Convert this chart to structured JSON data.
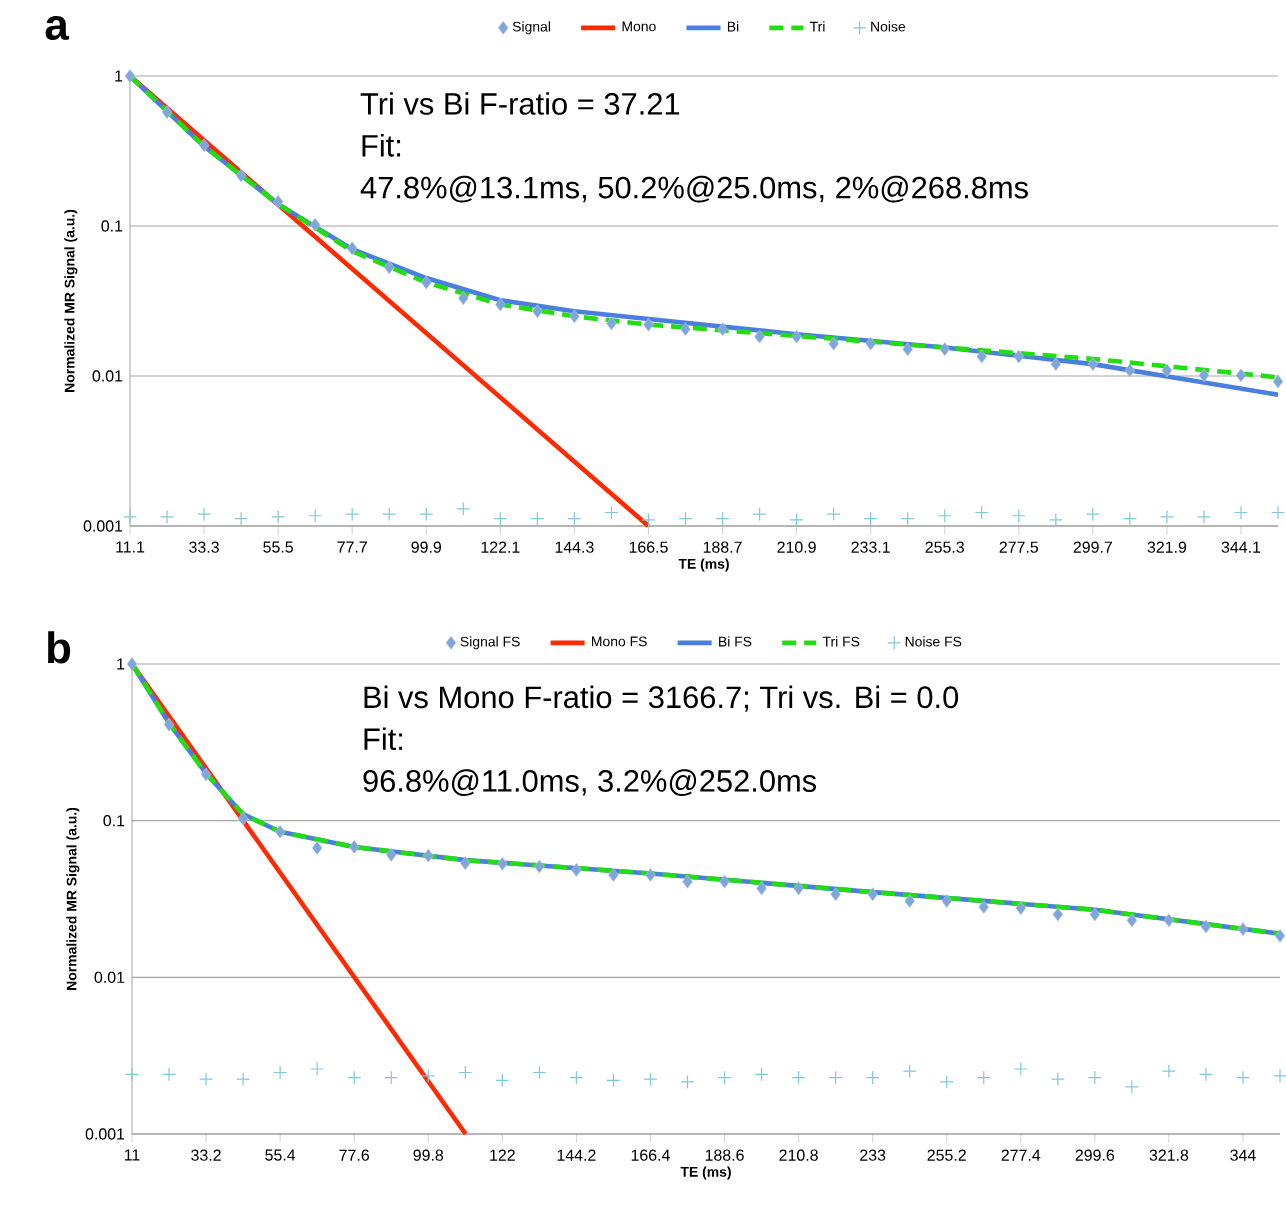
{
  "chart_data": [
    {
      "type": "line",
      "title": "a",
      "xlabel": "TE (ms)",
      "ylabel": "Normalized MR Signal (a.u.)",
      "annotations": [
        "Tri vs Bi F-ratio = 37.21",
        "Fit:",
        "47.8%@13.1ms, 50.2%@25.0ms, 2%@268.8ms"
      ],
      "xlim": [
        11.1,
        355.2
      ],
      "ylim": [
        0.001,
        1
      ],
      "xticks": [
        11.1,
        33.3,
        55.5,
        77.7,
        99.9,
        122.1,
        144.3,
        166.5,
        188.7,
        210.9,
        233.1,
        255.3,
        277.5,
        299.7,
        321.9,
        344.1
      ],
      "yticks": [
        0.001,
        0.01,
        0.1,
        1
      ],
      "log": "y",
      "grid": "y",
      "legend": "top",
      "series": [
        {
          "name": "Signal",
          "type": "scatter",
          "marker": "diamond",
          "color": "#7da7d9",
          "x": [
            11.1,
            22.2,
            33.3,
            44.4,
            55.5,
            66.6,
            77.7,
            88.8,
            99.9,
            111.0,
            122.1,
            133.2,
            144.3,
            155.4,
            166.5,
            177.6,
            188.7,
            199.8,
            210.9,
            222.0,
            233.1,
            244.2,
            255.3,
            266.4,
            277.5,
            288.6,
            299.7,
            310.8,
            321.9,
            333.0,
            344.1,
            355.2
          ],
          "values": [
            1,
            0.575,
            0.345,
            0.217,
            0.145,
            0.102,
            0.071,
            0.053,
            0.042,
            0.033,
            0.03,
            0.027,
            0.025,
            0.0224,
            0.022,
            0.0205,
            0.0205,
            0.0183,
            0.0183,
            0.0164,
            0.0164,
            0.0151,
            0.0151,
            0.0135,
            0.0135,
            0.012,
            0.012,
            0.0109,
            0.0109,
            0.0101,
            0.0101,
            0.0092
          ]
        },
        {
          "name": "Mono",
          "color": "#ff2a00",
          "line_style": "solid",
          "x": [
            11.1,
            166.5
          ],
          "values": [
            1,
            0.001
          ]
        },
        {
          "name": "Bi",
          "color": "#4a7fe0",
          "line_style": "solid",
          "x": [
            11.1,
            33.3,
            55.5,
            77.7,
            99.9,
            122.1,
            144.3,
            166.5,
            210.9,
            255.3,
            299.7,
            355.2
          ],
          "values": [
            1,
            0.34,
            0.14,
            0.07,
            0.045,
            0.032,
            0.027,
            0.024,
            0.019,
            0.0155,
            0.012,
            0.0075
          ]
        },
        {
          "name": "Tri",
          "color": "#22dd11",
          "line_style": "dashed",
          "x": [
            11.1,
            33.3,
            55.5,
            77.7,
            99.9,
            122.1,
            144.3,
            166.5,
            210.9,
            255.3,
            299.7,
            355.2
          ],
          "values": [
            1,
            0.34,
            0.14,
            0.068,
            0.042,
            0.03,
            0.025,
            0.022,
            0.0185,
            0.0155,
            0.013,
            0.0098
          ]
        },
        {
          "name": "Noise",
          "type": "scatter",
          "marker": "cross",
          "color": "#7ec8dc",
          "x": [
            11.1,
            22.2,
            33.3,
            44.4,
            55.5,
            66.6,
            77.7,
            88.8,
            99.9,
            111.0,
            122.1,
            133.2,
            144.3,
            155.4,
            166.5,
            177.6,
            188.7,
            199.8,
            210.9,
            222.0,
            233.1,
            244.2,
            255.3,
            266.4,
            277.5,
            288.6,
            299.7,
            310.8,
            321.9,
            333.0,
            344.1,
            355.2
          ],
          "values": [
            0.00115,
            0.00115,
            0.0012,
            0.00112,
            0.00115,
            0.00117,
            0.0012,
            0.0012,
            0.0012,
            0.0013,
            0.00112,
            0.00112,
            0.00112,
            0.00123,
            0.0011,
            0.00112,
            0.00112,
            0.0012,
            0.0011,
            0.0012,
            0.00112,
            0.00112,
            0.00117,
            0.00123,
            0.00117,
            0.0011,
            0.0012,
            0.00112,
            0.00115,
            0.00115,
            0.00123,
            0.00123
          ]
        }
      ]
    },
    {
      "type": "line",
      "title": "b",
      "xlabel": "TE (ms)",
      "ylabel": "Normalized MR Signal (a.u.)",
      "annotations": [
        "Bi vs Mono F-ratio = 3166.7; Tri vs. Bi = 0.0",
        "Fit:",
        "96.8%@11.0ms, 3.2%@252.0ms"
      ],
      "xlim": [
        11,
        355.1
      ],
      "ylim": [
        0.001,
        1
      ],
      "xticks": [
        11,
        33.2,
        55.4,
        77.6,
        99.8,
        122,
        144.2,
        166.4,
        188.6,
        210.8,
        233,
        255.2,
        277.4,
        299.6,
        321.8,
        344
      ],
      "yticks": [
        0.001,
        0.01,
        0.1,
        1
      ],
      "log": "y",
      "grid": "y",
      "legend": "top",
      "series": [
        {
          "name": "Signal FS",
          "type": "scatter",
          "marker": "diamond",
          "color": "#7da7d9",
          "x": [
            11,
            22.1,
            33.2,
            44.3,
            55.4,
            66.5,
            77.6,
            88.7,
            99.8,
            110.9,
            122,
            133.1,
            144.2,
            155.3,
            166.4,
            177.5,
            188.6,
            199.7,
            210.8,
            221.9,
            233,
            244.1,
            255.2,
            266.3,
            277.4,
            288.5,
            299.6,
            310.7,
            321.8,
            332.9,
            344,
            355.1
          ],
          "values": [
            1,
            0.41,
            0.197,
            0.103,
            0.085,
            0.067,
            0.068,
            0.0605,
            0.0598,
            0.0535,
            0.053,
            0.051,
            0.0485,
            0.045,
            0.045,
            0.0408,
            0.0408,
            0.037,
            0.037,
            0.0339,
            0.0339,
            0.0307,
            0.0307,
            0.0281,
            0.0276,
            0.0252,
            0.0252,
            0.0231,
            0.0231,
            0.0211,
            0.0203,
            0.0184
          ]
        },
        {
          "name": "Mono FS",
          "color": "#ff2a00",
          "line_style": "solid",
          "x": [
            11,
            111
          ],
          "values": [
            1,
            0.001
          ]
        },
        {
          "name": "Bi FS",
          "color": "#4a7fe0",
          "line_style": "solid",
          "x": [
            11,
            22.1,
            33.2,
            44.3,
            55.4,
            77.6,
            110.9,
            166.4,
            233,
            299.6,
            355.1
          ],
          "values": [
            1,
            0.42,
            0.2,
            0.11,
            0.085,
            0.068,
            0.056,
            0.046,
            0.035,
            0.027,
            0.019
          ]
        },
        {
          "name": "Tri FS",
          "color": "#22dd11",
          "line_style": "dashed",
          "x": [
            11,
            22.1,
            33.2,
            44.3,
            55.4,
            77.6,
            110.9,
            166.4,
            233,
            299.6,
            355.1
          ],
          "values": [
            1,
            0.42,
            0.2,
            0.11,
            0.085,
            0.068,
            0.056,
            0.046,
            0.035,
            0.027,
            0.019
          ]
        },
        {
          "name": "Noise FS",
          "type": "scatter",
          "marker": "cross",
          "color": "#7ec8dc",
          "x": [
            11,
            22.1,
            33.2,
            44.3,
            55.4,
            66.5,
            77.6,
            88.7,
            99.8,
            110.9,
            122,
            133.1,
            144.2,
            155.3,
            166.4,
            177.5,
            188.6,
            199.7,
            210.8,
            221.9,
            233,
            244.1,
            255.2,
            266.3,
            277.4,
            288.5,
            299.6,
            310.7,
            321.8,
            332.9,
            344,
            355.1
          ],
          "values": [
            0.0024,
            0.0024,
            0.00224,
            0.00224,
            0.00247,
            0.0026,
            0.00229,
            0.00229,
            0.00235,
            0.00247,
            0.0022,
            0.00247,
            0.00229,
            0.0022,
            0.00224,
            0.00215,
            0.00229,
            0.0024,
            0.00229,
            0.00229,
            0.00229,
            0.00252,
            0.00215,
            0.00229,
            0.0026,
            0.00224,
            0.00229,
            0.002,
            0.00252,
            0.0024,
            0.00229,
            0.00235
          ]
        }
      ]
    }
  ]
}
